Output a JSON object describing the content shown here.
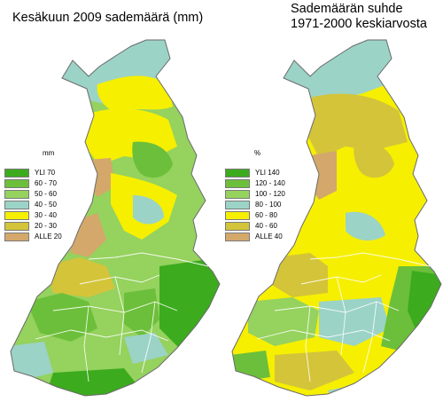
{
  "maps": [
    {
      "title": "Kesäkuun 2009 sademäärä (mm)",
      "legend_unit": "mm",
      "legend": [
        {
          "text": "YLI   70",
          "color": "#3cab1e"
        },
        {
          "text": "60 - 70",
          "color": "#6cbf3a"
        },
        {
          "text": "50 - 60",
          "color": "#95d25e"
        },
        {
          "text": "40 - 50",
          "color": "#9bd3c7"
        },
        {
          "text": "30 - 40",
          "color": "#f6ef00"
        },
        {
          "text": "20 - 30",
          "color": "#d4c43a"
        },
        {
          "text": "ALLE  20",
          "color": "#d4a86a"
        }
      ]
    },
    {
      "title": "Sademäärän suhde",
      "title_line2": "1971-2000 keskiarvosta",
      "legend_unit": "%",
      "legend": [
        {
          "text": "YLI   140",
          "color": "#3cab1e"
        },
        {
          "text": "120 - 140",
          "color": "#6cbf3a"
        },
        {
          "text": "100 - 120",
          "color": "#95d25e"
        },
        {
          "text": "80 - 100",
          "color": "#9bd3c7"
        },
        {
          "text": "60 -  80",
          "color": "#f6ef00"
        },
        {
          "text": "40 -  60",
          "color": "#d4c43a"
        },
        {
          "text": "ALLE   40",
          "color": "#d4a86a"
        }
      ]
    }
  ]
}
